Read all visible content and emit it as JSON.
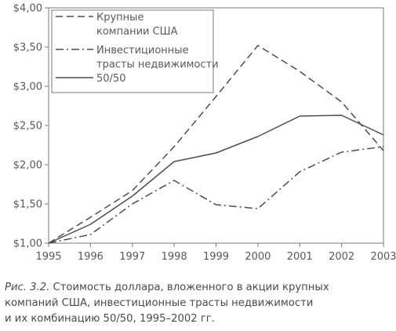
{
  "chart_data": {
    "type": "line",
    "x": [
      1995,
      1996,
      1997,
      1998,
      1999,
      2000,
      2001,
      2002,
      2003
    ],
    "xlim": [
      1995,
      2003
    ],
    "ylim": [
      1.0,
      4.0
    ],
    "yticks": [
      1.0,
      1.5,
      2.0,
      2.5,
      3.0,
      3.5,
      4.0
    ],
    "ytick_labels": [
      "$1,00",
      "$1,50",
      "$2,00",
      "$2,50",
      "$3,00",
      "$3,50",
      "$4,00"
    ],
    "xtick_labels": [
      "1995",
      "1996",
      "1997",
      "1998",
      "1999",
      "2000",
      "2001",
      "2002",
      "2003"
    ],
    "grid": false,
    "legend_position": "top-left",
    "series": [
      {
        "name": "Крупные компании США",
        "legend_lines": [
          "Крупные",
          "компании США"
        ],
        "style": "dashed",
        "x": [
          1995,
          1996,
          1997,
          1998,
          1999,
          2000,
          2001,
          2002,
          2003
        ],
        "values": [
          1.0,
          1.33,
          1.67,
          2.23,
          2.87,
          3.52,
          3.19,
          2.8,
          2.18
        ]
      },
      {
        "name": "Инвестиционные трасты недвижимости",
        "legend_lines": [
          "Инвестиционные",
          "трасты недвижимости"
        ],
        "style": "dashdot",
        "x": [
          1995,
          1996,
          1997,
          1998,
          1999,
          2000,
          2001,
          2002,
          2003
        ],
        "values": [
          1.0,
          1.11,
          1.5,
          1.8,
          1.49,
          1.44,
          1.91,
          2.16,
          2.23
        ]
      },
      {
        "name": "50/50",
        "legend_lines": [
          "50/50"
        ],
        "style": "solid",
        "x": [
          1995,
          1996,
          1997,
          1998,
          1999,
          2000,
          2001,
          2002,
          2003
        ],
        "values": [
          1.0,
          1.24,
          1.6,
          2.04,
          2.15,
          2.36,
          2.62,
          2.63,
          2.38
        ]
      }
    ]
  },
  "caption": {
    "label": "Рис. 3.2.",
    "line1": "Стоимость доллара, вложенного в акции крупных",
    "line2": "компаний США, инвестиционные трасты недвижимости",
    "line3": "и их комбинацию 50/50, 1995–2002 гг."
  },
  "colors": {
    "line": "#4d4d4d",
    "axis": "#7a7a7a",
    "text": "#595959"
  }
}
